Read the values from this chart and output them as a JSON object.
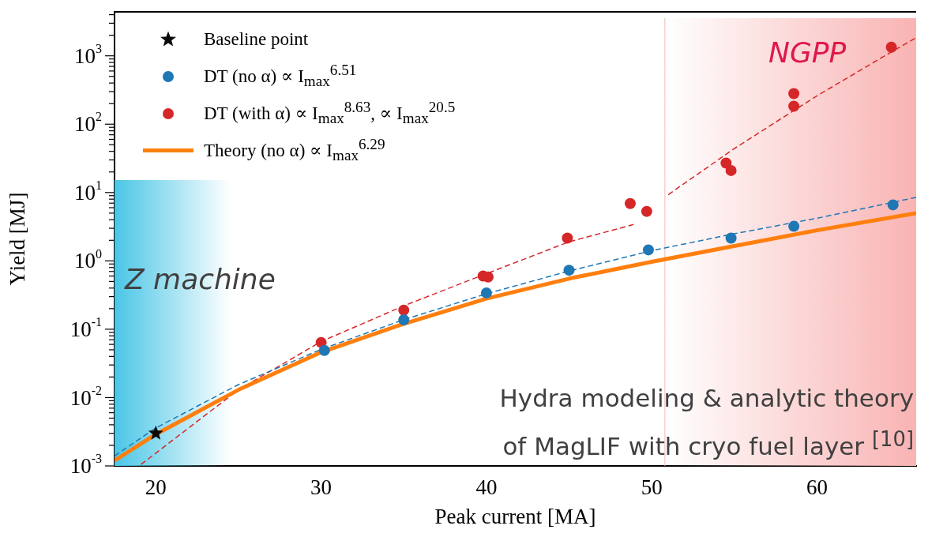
{
  "chart_data": {
    "type": "scatter",
    "xlabel": "Peak current [MA]",
    "ylabel": "Yield [MJ]",
    "xlim": [
      17.5,
      66
    ],
    "ylim": [
      0.001,
      4400
    ],
    "log": "y",
    "xticks": [
      20,
      30,
      40,
      50,
      60
    ],
    "yticks": [
      {
        "value": 0.001,
        "label": "10$^{-3}$"
      },
      {
        "value": 0.002,
        "label": null
      },
      {
        "value": 0.003,
        "label": null
      },
      {
        "value": 0.004,
        "label": null
      },
      {
        "value": 0.005,
        "label": null
      },
      {
        "value": 0.006,
        "label": null
      },
      {
        "value": 0.007,
        "label": null
      },
      {
        "value": 0.008,
        "label": null
      },
      {
        "value": 0.009,
        "label": null
      },
      {
        "value": 0.01,
        "label": "10$^{-2}$"
      },
      {
        "value": 0.02,
        "label": null
      },
      {
        "value": 0.03,
        "label": null
      },
      {
        "value": 0.04,
        "label": null
      },
      {
        "value": 0.05,
        "label": null
      },
      {
        "value": 0.06,
        "label": null
      },
      {
        "value": 0.07,
        "label": null
      },
      {
        "value": 0.08,
        "label": null
      },
      {
        "value": 0.09,
        "label": null
      },
      {
        "value": 0.1,
        "label": "10$^{-1}$"
      },
      {
        "value": 0.2,
        "label": null
      },
      {
        "value": 0.3,
        "label": null
      },
      {
        "value": 0.4,
        "label": null
      },
      {
        "value": 0.5,
        "label": null
      },
      {
        "value": 0.6,
        "label": null
      },
      {
        "value": 0.7,
        "label": null
      },
      {
        "value": 0.8,
        "label": null
      },
      {
        "value": 0.9,
        "label": null
      },
      {
        "value": 1,
        "label": "10$^{0}$"
      },
      {
        "value": 2,
        "label": null
      },
      {
        "value": 3,
        "label": null
      },
      {
        "value": 4,
        "label": null
      },
      {
        "value": 5,
        "label": null
      },
      {
        "value": 6,
        "label": null
      },
      {
        "value": 7,
        "label": null
      },
      {
        "value": 8,
        "label": null
      },
      {
        "value": 9,
        "label": null
      },
      {
        "value": 10,
        "label": "10$^{1}$"
      },
      {
        "value": 20,
        "label": null
      },
      {
        "value": 30,
        "label": null
      },
      {
        "value": 40,
        "label": null
      },
      {
        "value": 50,
        "label": null
      },
      {
        "value": 60,
        "label": null
      },
      {
        "value": 70,
        "label": null
      },
      {
        "value": 80,
        "label": null
      },
      {
        "value": 90,
        "label": null
      },
      {
        "value": 100,
        "label": "10$^{2}$"
      },
      {
        "value": 200,
        "label": null
      },
      {
        "value": 300,
        "label": null
      },
      {
        "value": 400,
        "label": null
      },
      {
        "value": 500,
        "label": null
      },
      {
        "value": 600,
        "label": null
      },
      {
        "value": 700,
        "label": null
      },
      {
        "value": 800,
        "label": null
      },
      {
        "value": 900,
        "label": null
      },
      {
        "value": 1000,
        "label": "10$^{3}$"
      },
      {
        "value": 2000,
        "label": null
      },
      {
        "value": 3000,
        "label": null
      },
      {
        "value": 4000,
        "label": null
      }
    ],
    "grid": false,
    "legend": "top left",
    "series": [
      {
        "name": "Baseline point",
        "marker": "star",
        "color": "#0a0a0a",
        "x": [
          20
        ],
        "values": [
          0.003
        ]
      },
      {
        "name": "DT (no α) ∝ I$_{max}$$^{6.51}$",
        "marker": "circle",
        "color": "#1f77b4",
        "x": [
          30.2,
          35,
          40,
          45,
          49.8,
          54.8,
          58.6,
          64.6
        ],
        "values": [
          0.049,
          0.137,
          0.34,
          0.73,
          1.45,
          2.15,
          3.2,
          6.6
        ]
      },
      {
        "name": "DT (with α) ∝ I$_{max}$$^{8.63}$,  ∝ I$_{max}$$^{20.5}$",
        "marker": "circle",
        "color": "#d62728",
        "x": [
          30,
          35,
          39.8,
          40.1,
          44.9,
          48.7,
          49.7,
          54.5,
          54.8,
          58.6,
          58.6,
          64.5
        ],
        "values": [
          0.064,
          0.19,
          0.6,
          0.58,
          2.15,
          6.9,
          5.3,
          27,
          21,
          183,
          280,
          1340
        ]
      },
      {
        "name": "Theory (no α) ∝ I$_{max}$$^{6.29}$",
        "type": "line",
        "marker": "none",
        "line_style": "solid",
        "color": "#ff7f0e",
        "x": [
          17.5,
          20,
          25,
          30,
          35,
          40,
          45,
          50,
          55,
          60,
          66
        ],
        "values": [
          0.0012,
          0.0029,
          0.013,
          0.046,
          0.12,
          0.28,
          0.55,
          0.97,
          1.65,
          2.8,
          5.0
        ]
      },
      {
        "type": "line",
        "marker": "none",
        "line_style": "dashed",
        "color": "#1f77b4",
        "x": [
          17.5,
          20,
          25,
          30,
          35,
          40,
          45,
          50,
          55,
          60,
          66
        ],
        "values": [
          0.0014,
          0.0036,
          0.0155,
          0.0507,
          0.138,
          0.33,
          0.71,
          1.41,
          2.5,
          4.2,
          8.5
        ]
      },
      {
        "type": "line",
        "marker": "none",
        "line_style": "dashed",
        "color": "#d62728",
        "x": [
          19.1,
          25,
          30,
          35,
          40,
          45,
          48.9
        ],
        "values": [
          0.00105,
          0.013,
          0.066,
          0.22,
          0.65,
          1.9,
          3.4
        ]
      },
      {
        "type": "line",
        "marker": "none",
        "line_style": "dashed",
        "color": "#d62728",
        "x": [
          51,
          55,
          60,
          64.5,
          66
        ],
        "values": [
          9.3,
          44,
          260,
          1140,
          1840
        ]
      }
    ],
    "bands": [
      {
        "axis": "x",
        "from": 17.5,
        "to": 24.5,
        "color": "#4ac6e6"
      },
      {
        "axis": "x",
        "from": 50.8,
        "to": 66,
        "color": "#f9b3b3"
      }
    ],
    "ref_lines": [
      {
        "axis": "x",
        "value": 50.8,
        "color": "#f9b3b3",
        "line_style": "solid"
      }
    ],
    "annotations": [
      "Z machine",
      "NGPP",
      "Hydra modeling & analytic theory\nof MagLIF with cryo fuel layer $^{[10]}$"
    ]
  }
}
